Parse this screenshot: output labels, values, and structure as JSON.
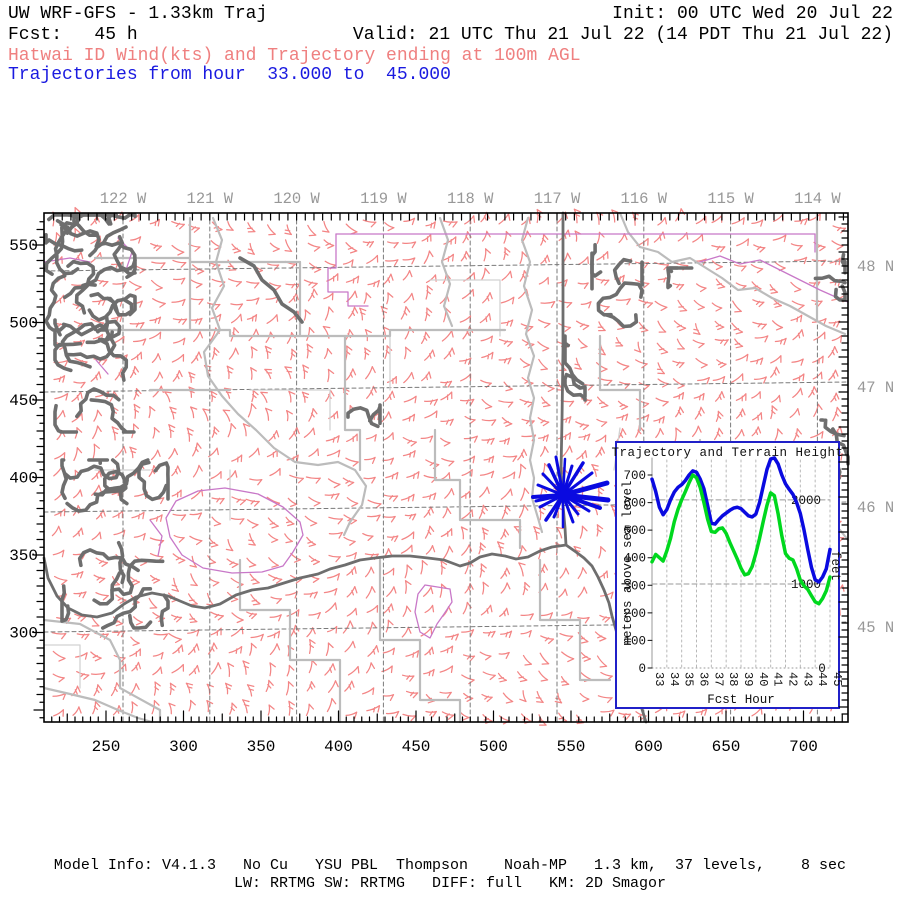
{
  "header": {
    "title": "UW WRF-GFS - 1.33km Traj",
    "init": "Init: 00 UTC Wed 20 Jul 22",
    "fcst": "Fcst:   45 h",
    "valid": "Valid: 21 UTC Thu 21 Jul 22 (14 PDT Thu 21 Jul 22)",
    "subtitle_red": "Hatwai ID Wind(kts) and Trajectory ending at 100m AGL",
    "subtitle_blue": "Trajectories from hour  33.000 to  45.000"
  },
  "footer": {
    "line1": "Model Info: V4.1.3   No Cu   YSU PBL  Thompson    Noah-MP   1.3 km,  37 levels,    8 sec",
    "line2": "LW: RRTMG SW: RRTMG   DIFF: full   KM: 2D Smagor"
  },
  "map": {
    "bottom_axis_ticks": [
      250,
      300,
      350,
      400,
      450,
      500,
      550,
      600,
      650,
      700
    ],
    "left_axis_ticks": [
      550,
      500,
      450,
      400,
      350,
      300
    ],
    "top_axis_labels": [
      "122 W",
      "121 W",
      "120 W",
      "119 W",
      "118 W",
      "117 W",
      "116 W",
      "115 W",
      "114 W"
    ],
    "right_axis_labels": [
      "48 N",
      "47 N",
      "46 N",
      "45 N"
    ]
  },
  "chart_data": {
    "type": "line",
    "title": "Trajectory and Terrain Height",
    "xlabel": "Fcst Hour",
    "ylabel": "meters above sea level",
    "right_axis_label": "feet",
    "right_axis_ticks": [
      {
        "label": "2000",
        "meters": 609.6
      },
      {
        "label": "1000",
        "meters": 304.8
      }
    ],
    "left_zero_label": "0",
    "right_zero_label": "0",
    "x_start": 33,
    "x_step": 0.25,
    "x_tick_labels": [
      "33",
      "34",
      "35",
      "36",
      "37",
      "38",
      "39",
      "40",
      "41",
      "42",
      "43",
      "44",
      "45"
    ],
    "ylim": [
      0,
      762
    ],
    "y_ticks": [
      0,
      100,
      200,
      300,
      400,
      500,
      600,
      700
    ],
    "grid": true,
    "series": [
      {
        "name": "trajectory_height",
        "color": "#0a0ae0",
        "values": [
          685,
          640,
          583,
          556,
          575,
          610,
          638,
          655,
          665,
          680,
          700,
          715,
          710,
          685,
          650,
          590,
          525,
          522,
          538,
          552,
          562,
          572,
          580,
          583,
          578,
          565,
          552,
          548,
          558,
          600,
          660,
          720,
          758,
          762,
          740,
          700,
          668,
          648,
          630,
          600,
          560,
          500,
          430,
          365,
          320,
          312,
          330,
          360,
          430
        ]
      },
      {
        "name": "terrain_height",
        "color": "#00d81e",
        "values": [
          385,
          412,
          400,
          388,
          425,
          470,
          530,
          575,
          610,
          640,
          672,
          700,
          690,
          655,
          600,
          540,
          495,
          492,
          505,
          508,
          488,
          455,
          425,
          395,
          362,
          338,
          342,
          368,
          415,
          470,
          532,
          590,
          635,
          625,
          560,
          480,
          415,
          398,
          392,
          360,
          318,
          298,
          285,
          262,
          240,
          233,
          252,
          280,
          330
        ]
      }
    ]
  },
  "colors": {
    "subtitle_red": "#ef8080",
    "subtitle_blue": "#1a1ae0",
    "wind_barb": "#f38585",
    "axis_label_gray": "#989898",
    "boundary_gray": "#bcbcbc",
    "boundary_light": "#d2d2d2",
    "terrain_dark": "#6e6e6e",
    "graticule": "#7a7a7a",
    "reservation_magenta": "#c878c8",
    "trajectory_blue": "#0a0ae0",
    "terrain_green": "#00d81e",
    "inset_border": "#2020c8",
    "map_border": "#000000"
  }
}
